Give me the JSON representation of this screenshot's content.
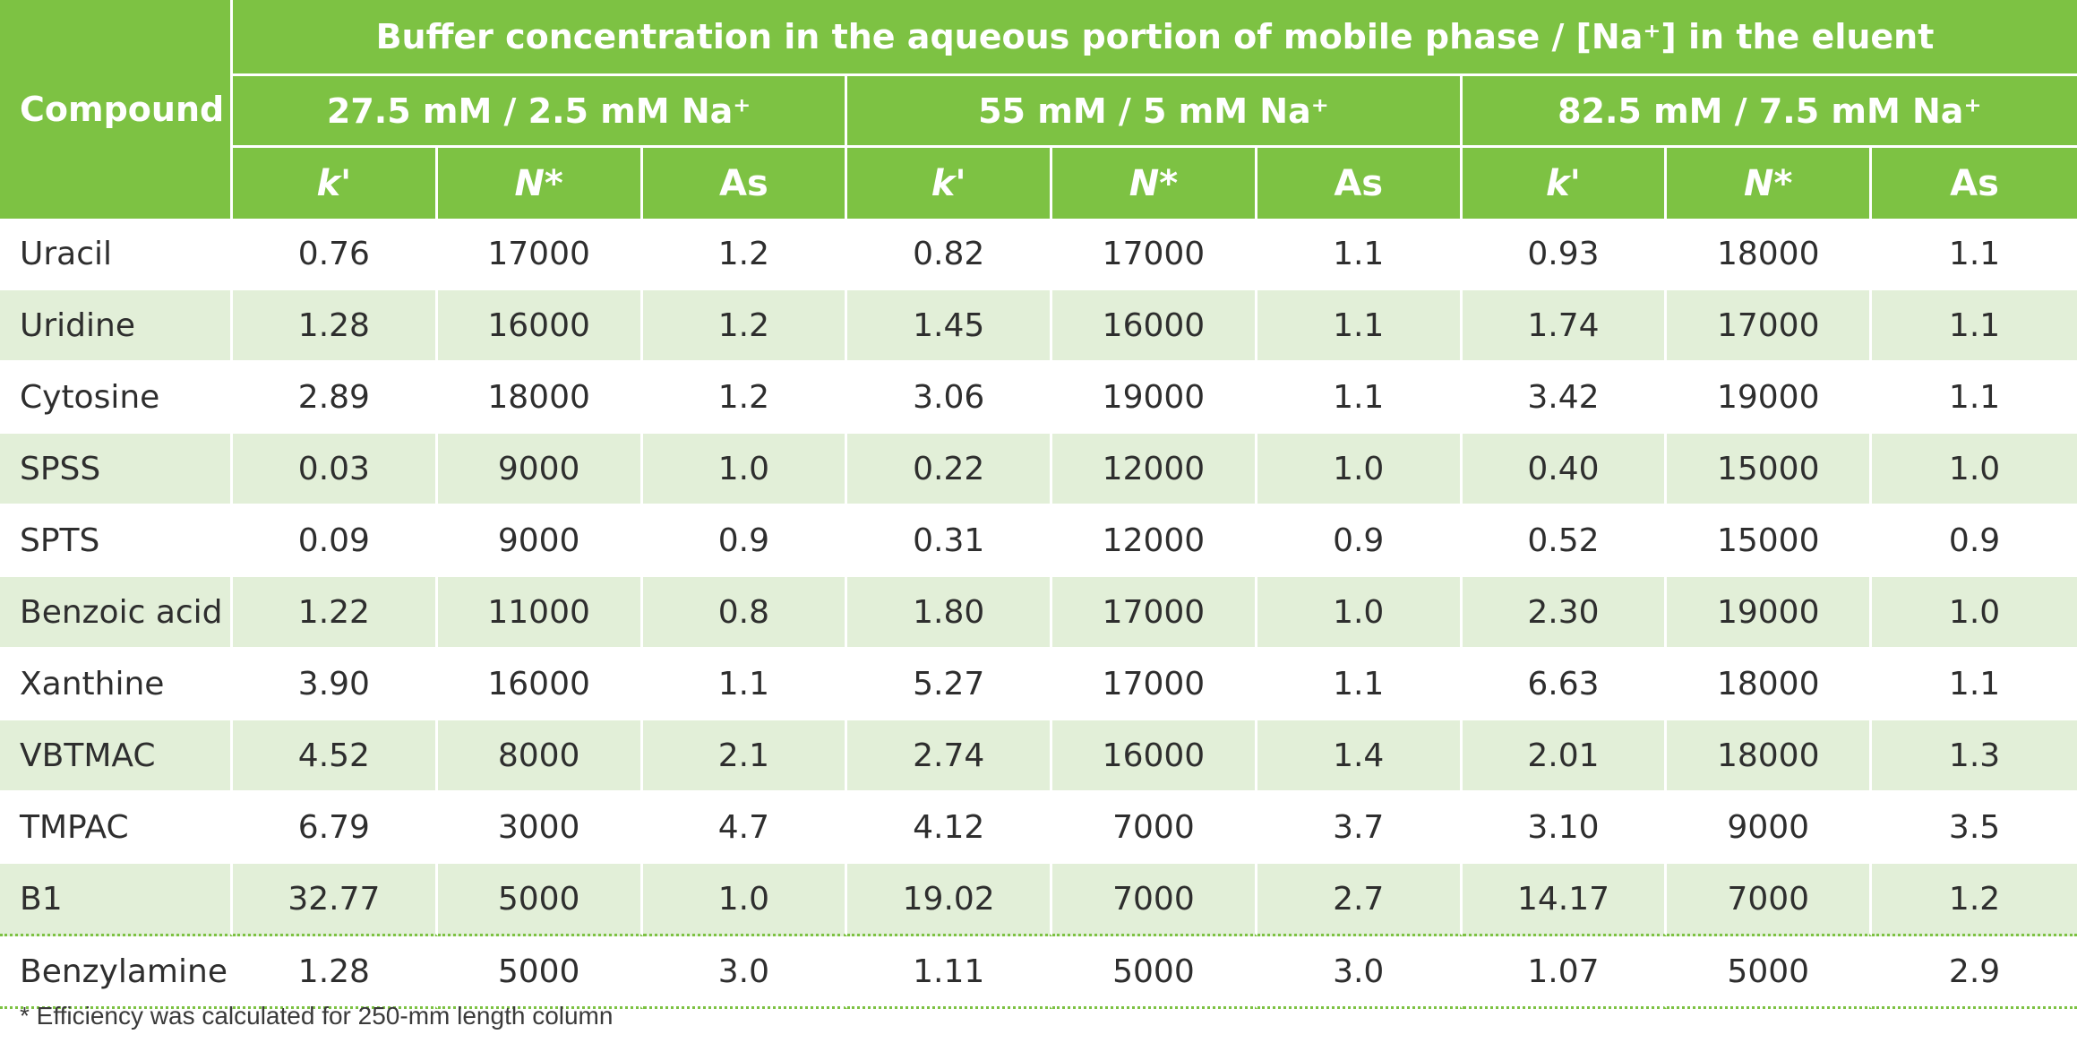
{
  "table": {
    "compound_header": "Compound",
    "group_header": "Buffer concentration in the aqueous portion of mobile phase / [Na⁺] in the eluent",
    "conditions": [
      "27.5 mM / 2.5 mM Na⁺",
      "55 mM / 5 mM Na⁺",
      "82.5 mM / 7.5 mM Na⁺"
    ],
    "subheaders": [
      "k'",
      "N*",
      "As",
      "k'",
      "N*",
      "As",
      "k'",
      "N*",
      "As"
    ],
    "rows": [
      {
        "compound": "Uracil",
        "values": [
          "0.76",
          "17000",
          "1.2",
          "0.82",
          "17000",
          "1.1",
          "0.93",
          "18000",
          "1.1"
        ]
      },
      {
        "compound": "Uridine",
        "values": [
          "1.28",
          "16000",
          "1.2",
          "1.45",
          "16000",
          "1.1",
          "1.74",
          "17000",
          "1.1"
        ]
      },
      {
        "compound": "Cytosine",
        "values": [
          "2.89",
          "18000",
          "1.2",
          "3.06",
          "19000",
          "1.1",
          "3.42",
          "19000",
          "1.1"
        ]
      },
      {
        "compound": "SPSS",
        "values": [
          "0.03",
          "9000",
          "1.0",
          "0.22",
          "12000",
          "1.0",
          "0.40",
          "15000",
          "1.0"
        ]
      },
      {
        "compound": "SPTS",
        "values": [
          "0.09",
          "9000",
          "0.9",
          "0.31",
          "12000",
          "0.9",
          "0.52",
          "15000",
          "0.9"
        ]
      },
      {
        "compound": "Benzoic acid",
        "values": [
          "1.22",
          "11000",
          "0.8",
          "1.80",
          "17000",
          "1.0",
          "2.30",
          "19000",
          "1.0"
        ]
      },
      {
        "compound": "Xanthine",
        "values": [
          "3.90",
          "16000",
          "1.1",
          "5.27",
          "17000",
          "1.1",
          "6.63",
          "18000",
          "1.1"
        ]
      },
      {
        "compound": "VBTMAC",
        "values": [
          "4.52",
          "8000",
          "2.1",
          "2.74",
          "16000",
          "1.4",
          "2.01",
          "18000",
          "1.3"
        ]
      },
      {
        "compound": "TMPAC",
        "values": [
          "6.79",
          "3000",
          "4.7",
          "4.12",
          "7000",
          "3.7",
          "3.10",
          "9000",
          "3.5"
        ]
      },
      {
        "compound": "B1",
        "values": [
          "32.77",
          "5000",
          "1.0",
          "19.02",
          "7000",
          "2.7",
          "14.17",
          "7000",
          "1.2"
        ]
      },
      {
        "compound": "Benzylamine",
        "values": [
          "1.28",
          "5000",
          "3.0",
          "1.11",
          "5000",
          "3.0",
          "1.07",
          "5000",
          "2.9"
        ]
      }
    ],
    "footnote": "* Efficiency was calculated for 250-mm length column",
    "colors": {
      "header_bg": "#7dc243",
      "header_text": "#ffffff",
      "shaded_row": "#e2efd8"
    }
  }
}
